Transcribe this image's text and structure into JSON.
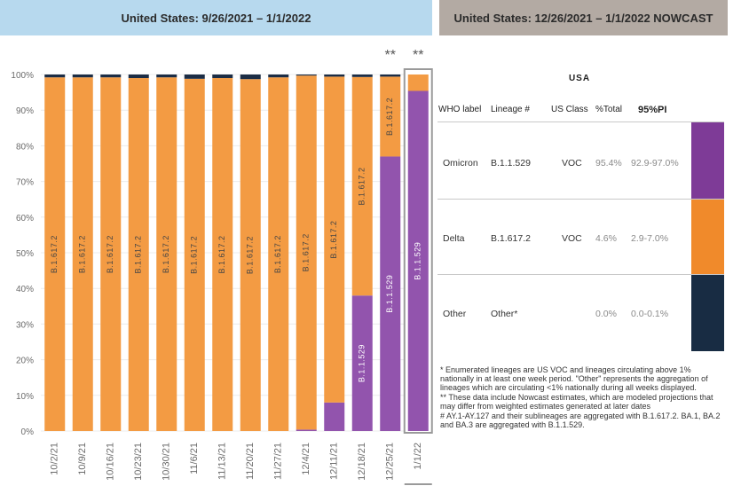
{
  "headers": {
    "left": "United States: 9/26/2021 – 1/1/2022",
    "right": "United States: 12/26/2021 – 1/1/2022 NOWCAST"
  },
  "colors": {
    "delta": "#f39b43",
    "omicron": "#9254ad",
    "other": "#1c2d45",
    "nowcast_omicron": "#7e3b97",
    "nowcast_delta": "#f08a2b",
    "nowcast_other": "#182c43"
  },
  "chart_data": {
    "type": "bar",
    "stacked": true,
    "title": "United States: 9/26/2021 – 1/1/2022",
    "ylim": [
      0,
      100
    ],
    "yticks": [
      "0%",
      "10%",
      "20%",
      "30%",
      "40%",
      "50%",
      "60%",
      "70%",
      "80%",
      "90%",
      "100%"
    ],
    "categories": [
      "10/2/21",
      "10/9/21",
      "10/16/21",
      "10/23/21",
      "10/30/21",
      "11/6/21",
      "11/13/21",
      "11/20/21",
      "11/27/21",
      "12/4/21",
      "12/11/21",
      "12/18/21",
      "12/25/21",
      "1/1/22"
    ],
    "series": [
      {
        "name": "B.1.1.529",
        "values": [
          0,
          0,
          0,
          0,
          0,
          0,
          0,
          0,
          0,
          0.4,
          8,
          38,
          77,
          95.4
        ]
      },
      {
        "name": "B.1.617.2",
        "values": [
          99.2,
          99.2,
          99.2,
          99.0,
          99.2,
          98.8,
          99.0,
          98.7,
          99.2,
          99.3,
          91.4,
          61.3,
          22.4,
          4.6
        ]
      },
      {
        "name": "Other",
        "values": [
          0.8,
          0.8,
          0.8,
          1.0,
          0.8,
          1.2,
          1.0,
          1.3,
          0.8,
          0.3,
          0.6,
          0.7,
          0.6,
          0.0
        ]
      }
    ],
    "bar_labels": {
      "delta": "B.1.617.2",
      "omicron": "B.1.1.529"
    },
    "nowcast_markers": {
      "label": "**",
      "categories": [
        "12/25/21",
        "1/1/22"
      ]
    }
  },
  "nowcast": {
    "region": "USA",
    "columns": [
      "WHO label",
      "Lineage #",
      "US Class",
      "%Total",
      "95%PI"
    ],
    "rows": [
      {
        "who": "Omicron",
        "lineage": "B.1.1.529",
        "class": "VOC",
        "total": "95.4%",
        "pi": "92.9-97.0%",
        "color": "#7e3b97"
      },
      {
        "who": "Delta",
        "lineage": "B.1.617.2",
        "class": "VOC",
        "total": "4.6%",
        "pi": "2.9-7.0%",
        "color": "#f08a2b"
      },
      {
        "who": "Other",
        "lineage": "Other*",
        "class": "",
        "total": "0.0%",
        "pi": "0.0-0.1%",
        "color": "#182c43"
      }
    ]
  },
  "footnotes": [
    "*       Enumerated lineages are US VOC and lineages circulating above 1% nationally in at least one week period. \"Other\" represents the aggregation of lineages which are circulating <1% nationally during all weeks displayed.",
    "**     These data include Nowcast estimates, which are modeled projections that may differ from weighted estimates generated at later dates",
    "#       AY.1-AY.127 and their sublineages are aggregated with B.1.617.2. BA.1, BA.2 and BA.3 are aggregated with B.1.1.529."
  ]
}
